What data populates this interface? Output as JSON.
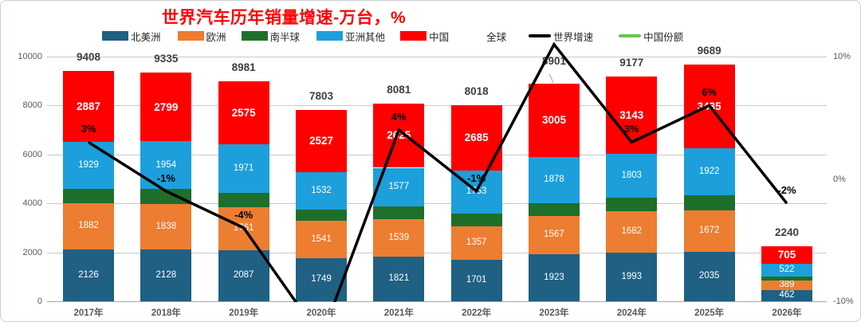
{
  "title": "世界汽车历年销量增速-万台，%",
  "legend": {
    "items": [
      {
        "label": "北美洲",
        "swatch": "box",
        "color": "#1F6083"
      },
      {
        "label": "欧洲",
        "swatch": "box",
        "color": "#ED7D31"
      },
      {
        "label": "南半球",
        "swatch": "box",
        "color": "#1E6F2B"
      },
      {
        "label": "亚洲其他",
        "swatch": "box",
        "color": "#1D9FDB"
      },
      {
        "label": "中国",
        "swatch": "box",
        "color": "#FE0000"
      },
      {
        "label": "全球",
        "swatch": "none",
        "color": "#FFFFFF"
      },
      {
        "label": "世界增速",
        "swatch": "line",
        "color": "#000000"
      },
      {
        "label": "中国份额",
        "swatch": "line",
        "color": "#62C94D"
      }
    ]
  },
  "chart_data": {
    "type": "combo-stacked-bar-line",
    "title": "世界汽车历年销量增速-万台，%",
    "categories": [
      "2017年",
      "2018年",
      "2019年",
      "2020年",
      "2021年",
      "2022年",
      "2023年",
      "2024年",
      "2025年",
      "2026年"
    ],
    "series": [
      {
        "name": "北美洲",
        "color": "#1F6083",
        "show_labels": true,
        "emphasis": false,
        "values": [
          2126,
          2128,
          2087,
          1749,
          1821,
          1701,
          1923,
          1993,
          2035,
          462
        ]
      },
      {
        "name": "欧洲",
        "color": "#ED7D31",
        "show_labels": true,
        "emphasis": false,
        "values": [
          1882,
          1838,
          1761,
          1541,
          1539,
          1357,
          1567,
          1682,
          1672,
          389
        ]
      },
      {
        "name": "南半球",
        "color": "#1E6F2B",
        "show_labels": false,
        "emphasis": false,
        "values": [
          584,
          616,
          587,
          454,
          519,
          522,
          528,
          556,
          625,
          162
        ]
      },
      {
        "name": "亚洲其他",
        "color": "#1D9FDB",
        "show_labels": true,
        "emphasis": false,
        "values": [
          1929,
          1954,
          1971,
          1532,
          1577,
          1753,
          1878,
          1803,
          1922,
          522
        ]
      },
      {
        "name": "中国",
        "color": "#FE0000",
        "show_labels": true,
        "emphasis": true,
        "values": [
          2887,
          2799,
          2575,
          2527,
          2625,
          2685,
          3005,
          3143,
          3435,
          705
        ]
      }
    ],
    "totals": {
      "name": "全球",
      "values": [
        9408,
        9335,
        8981,
        7803,
        8081,
        8018,
        8901,
        9177,
        9689,
        2240
      ]
    },
    "line_series": {
      "name": "世界增速",
      "color": "#000000",
      "values": [
        3,
        -1,
        -4,
        -13,
        4,
        -1,
        11,
        3,
        6,
        -2
      ],
      "labels": [
        "3%",
        "-1%",
        "-4%",
        null,
        "4%",
        "-1%",
        null,
        "3%",
        "6%",
        "-2%"
      ]
    },
    "extra_legend_series": {
      "name": "中国份额",
      "color": "#62C94D",
      "plotted": false
    },
    "left_axis": {
      "min": 0,
      "max": 10000,
      "ticks": [
        {
          "label": "10000",
          "value": 10000
        },
        {
          "label": "8000",
          "value": 8000
        },
        {
          "label": "6000",
          "value": 6000
        },
        {
          "label": "4000",
          "value": 4000
        },
        {
          "label": "2000",
          "value": 2000
        },
        {
          "label": "0",
          "value": 0
        }
      ]
    },
    "right_axis": {
      "min": -10,
      "max": 10,
      "ticks": [
        {
          "label": "10%",
          "value": 10
        },
        {
          "label": "0%",
          "value": 0
        },
        {
          "label": "-10%",
          "value": -10
        }
      ]
    },
    "grid": true,
    "legend_position": "top"
  }
}
